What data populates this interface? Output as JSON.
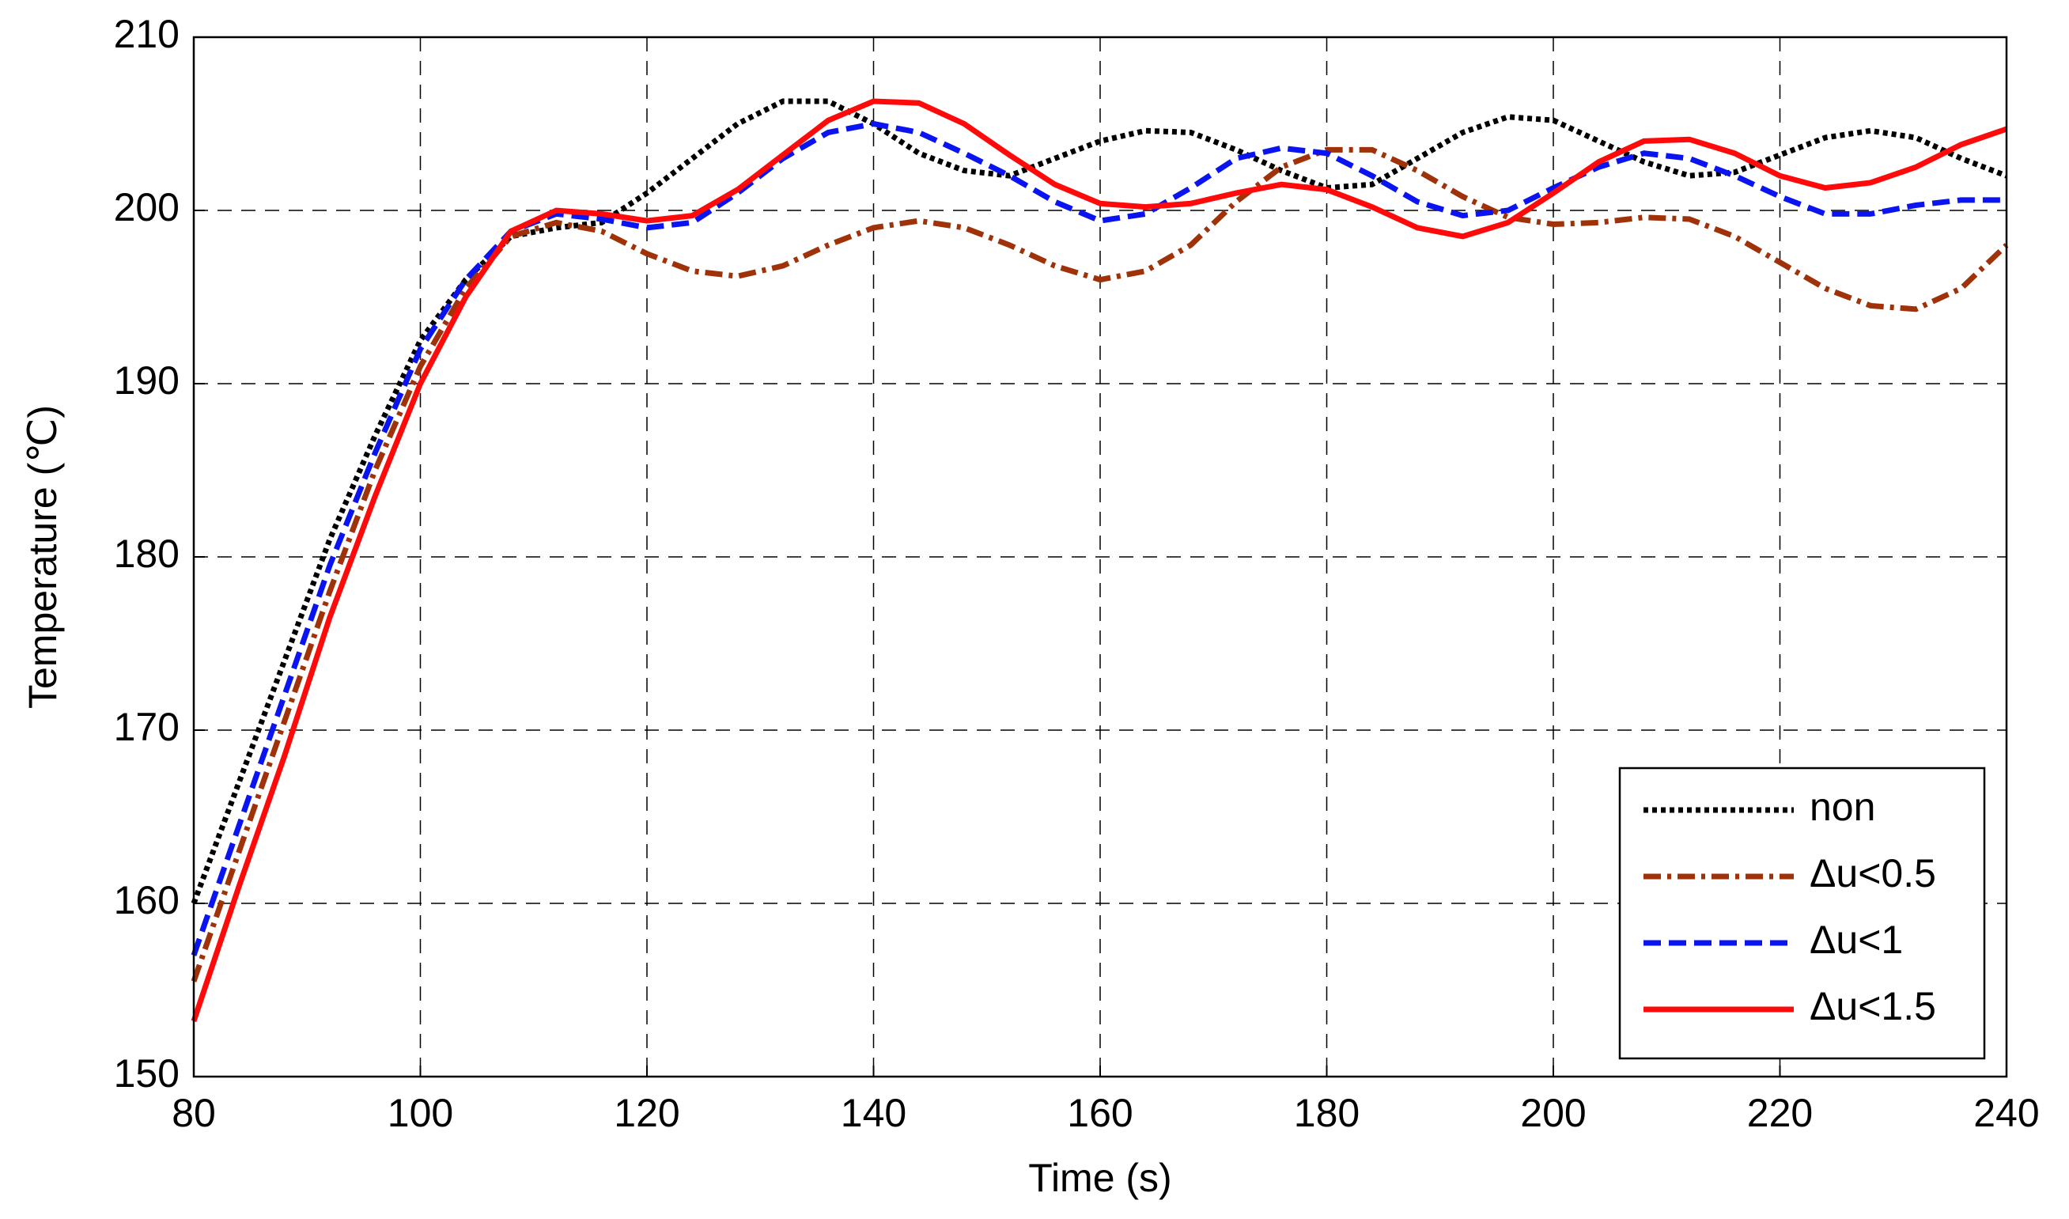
{
  "chart_data": {
    "type": "line",
    "xlabel": "Time (s)",
    "ylabel": "Temperature (℃)",
    "x": [
      80,
      84,
      88,
      92,
      96,
      100,
      104,
      108,
      112,
      116,
      120,
      124,
      128,
      132,
      136,
      140,
      144,
      148,
      152,
      156,
      160,
      164,
      168,
      172,
      176,
      180,
      184,
      188,
      192,
      196,
      200,
      204,
      208,
      212,
      216,
      220,
      224,
      228,
      232,
      236,
      240
    ],
    "series": [
      {
        "name": "non",
        "color": "#000000",
        "dash": "dotted",
        "values": [
          160,
          167,
          174,
          181,
          187,
          192.5,
          196,
          198.5,
          199,
          199.3,
          201,
          203,
          205,
          206.3,
          206.3,
          205,
          203.3,
          202.3,
          202,
          203,
          204,
          204.6,
          204.5,
          203.5,
          202.3,
          201.3,
          201.5,
          203,
          204.5,
          205.4,
          205.2,
          204,
          202.8,
          202,
          202.2,
          203.2,
          204.2,
          204.6,
          204.2,
          203,
          202
        ]
      },
      {
        "name": "Δu<0.5",
        "color": "#a0320a",
        "dash": "dashdot",
        "values": [
          155.5,
          163,
          170.5,
          178,
          185,
          191,
          195.5,
          198.5,
          199.3,
          198.8,
          197.5,
          196.5,
          196.2,
          196.8,
          198,
          199,
          199.4,
          199,
          198,
          196.8,
          196,
          196.5,
          198,
          200.5,
          202.5,
          203.5,
          203.5,
          202.3,
          200.8,
          199.6,
          199.2,
          199.3,
          199.6,
          199.5,
          198.5,
          197,
          195.5,
          194.5,
          194.3,
          195.5,
          198
        ]
      },
      {
        "name": "Δu<1",
        "color": "#0a14f0",
        "dash": "dashed",
        "values": [
          157,
          164.5,
          172,
          179.5,
          186,
          192,
          196,
          198.8,
          199.8,
          199.5,
          199,
          199.3,
          201,
          203,
          204.5,
          205,
          204.5,
          203.3,
          202,
          200.5,
          199.4,
          199.8,
          201.3,
          203,
          203.6,
          203.3,
          202,
          200.5,
          199.7,
          200,
          201.3,
          202.5,
          203.3,
          203,
          202,
          200.8,
          199.8,
          199.8,
          200.3,
          200.6,
          200.6
        ]
      },
      {
        "name": "Δu<1.5",
        "color": "#ff0a0a",
        "dash": "solid",
        "values": [
          153.2,
          161,
          168.5,
          176.5,
          183.5,
          190,
          195,
          198.8,
          200,
          199.8,
          199.4,
          199.7,
          201.2,
          203.2,
          205.2,
          206.3,
          206.2,
          205,
          203.2,
          201.5,
          200.4,
          200.2,
          200.4,
          201,
          201.5,
          201.2,
          200.2,
          199,
          198.5,
          199.3,
          201,
          202.8,
          204,
          204.1,
          203.3,
          202,
          201.3,
          201.6,
          202.5,
          203.8,
          204.7
        ]
      }
    ],
    "xlim": [
      80,
      240
    ],
    "xticks": [
      80,
      100,
      120,
      140,
      160,
      180,
      200,
      220,
      240
    ],
    "ylim": [
      150,
      210
    ],
    "yticks": [
      150,
      160,
      170,
      180,
      190,
      200,
      210
    ],
    "grid": true,
    "legend": "lower right"
  }
}
